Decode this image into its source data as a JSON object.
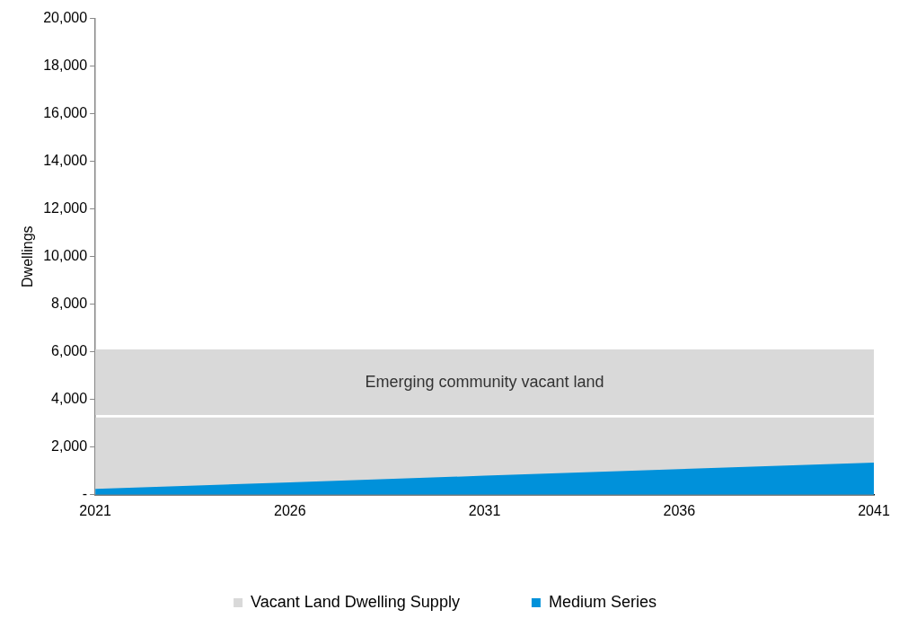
{
  "chart_data": {
    "type": "area",
    "ylabel": "Dwellings",
    "x": [
      2021,
      2026,
      2031,
      2036,
      2041
    ],
    "series": [
      {
        "name": "Vacant Land Dwelling Supply",
        "color": "#d9d9d9",
        "values": [
          3250,
          3250,
          3250,
          3250,
          3250
        ]
      },
      {
        "name": "Medium Series",
        "color": "#0091da",
        "values": [
          250,
          520,
          800,
          1080,
          1350
        ]
      }
    ],
    "bands": [
      {
        "axis": "y",
        "from": 3350,
        "to": 6100,
        "label": "Emerging community vacant land",
        "color": "#d9d9d9"
      }
    ],
    "xlim": [
      2021,
      2041
    ],
    "xticks": [
      2021,
      2026,
      2031,
      2036,
      2041
    ],
    "ylim": [
      0,
      20000
    ],
    "yticks": [
      {
        "value": 0,
        "label": "-"
      },
      {
        "value": 2000,
        "label": "2,000"
      },
      {
        "value": 4000,
        "label": "4,000"
      },
      {
        "value": 6000,
        "label": "6,000"
      },
      {
        "value": 8000,
        "label": "8,000"
      },
      {
        "value": 10000,
        "label": "10,000"
      },
      {
        "value": 12000,
        "label": "12,000"
      },
      {
        "value": 14000,
        "label": "14,000"
      },
      {
        "value": 16000,
        "label": "16,000"
      },
      {
        "value": 18000,
        "label": "18,000"
      },
      {
        "value": 20000,
        "label": "20,000"
      }
    ],
    "grid": false,
    "legend": "bottom"
  }
}
